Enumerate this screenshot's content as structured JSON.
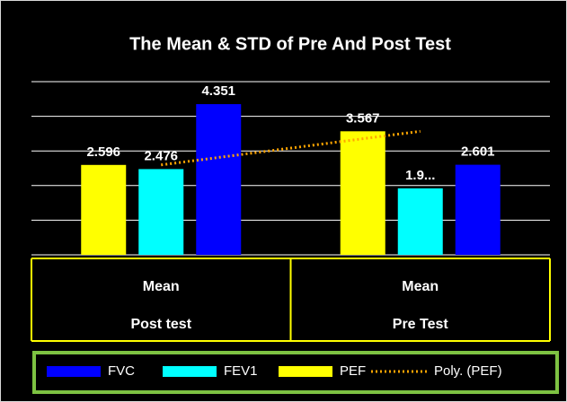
{
  "chart_data": {
    "type": "bar",
    "title": "The Mean & STD of Pre And Post Test",
    "categories": [
      [
        "Mean",
        "Post test"
      ],
      [
        "Mean",
        "Pre Test"
      ]
    ],
    "series": [
      {
        "name": "PEF",
        "color": "#ffff00",
        "values": [
          2.596,
          3.567
        ]
      },
      {
        "name": "FEV1",
        "color": "#00ffff",
        "values": [
          2.476,
          1.92
        ],
        "value_labels": [
          "2.476",
          "1.9..."
        ]
      },
      {
        "name": "FVC",
        "color": "#0000ff",
        "values": [
          4.351,
          2.601
        ]
      }
    ],
    "legend_order": [
      "FVC",
      "FEV1",
      "PEF"
    ],
    "trendline": {
      "name": "Poly. (PEF)",
      "color": "#ffa500"
    },
    "ylim": [
      0,
      5
    ],
    "yticks": [
      0,
      1,
      2,
      3,
      4,
      5
    ],
    "grid": true
  }
}
